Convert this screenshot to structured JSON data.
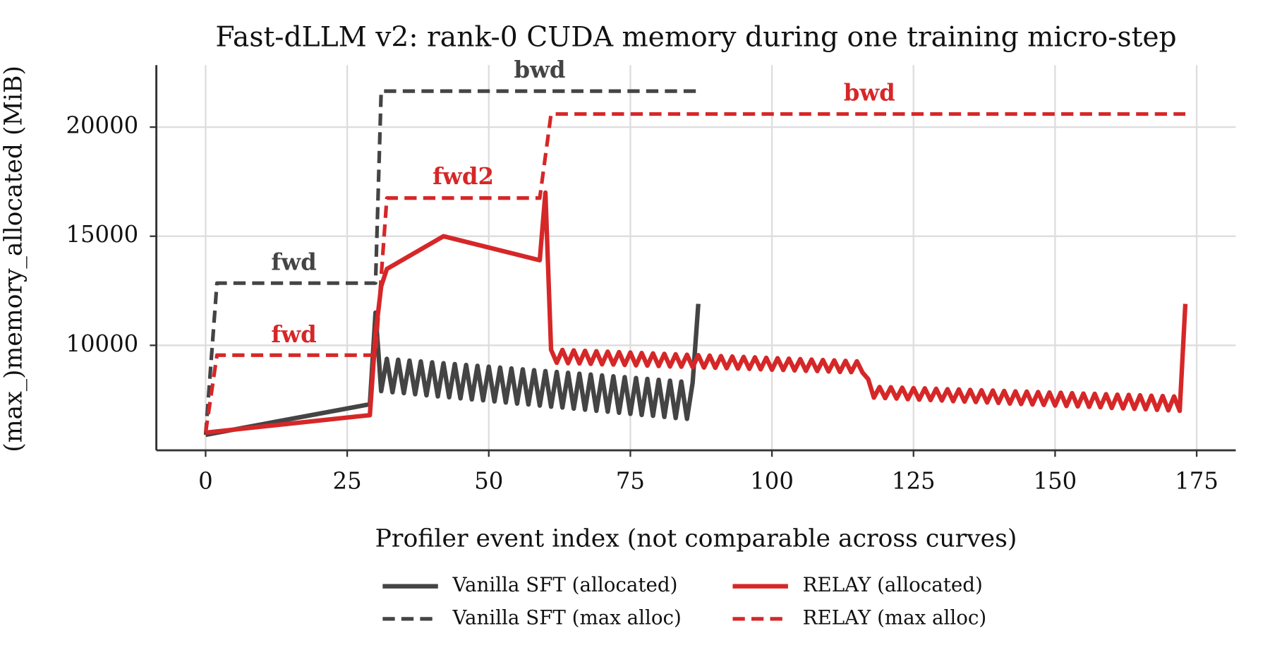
{
  "chart_data": {
    "type": "line",
    "title": "Fast-dLLM v2: rank-0 CUDA memory during one training micro-step",
    "xlabel": "Profiler event index (not comparable across curves)",
    "ylabel": "(max_)memory_allocated (MiB)",
    "xlim": [
      -8.7,
      181.9
    ],
    "ylim": [
      5190,
      22840
    ],
    "xticks": [
      0,
      25,
      50,
      75,
      100,
      125,
      150,
      175
    ],
    "yticks": [
      10000,
      15000,
      20000
    ],
    "grid": true,
    "legend": "lower center",
    "series": [
      {
        "name": "Vanilla SFT (allocated)",
        "color": "#444444",
        "linestyle": "solid",
        "x": [
          0,
          29,
          30,
          31,
          32,
          33,
          34,
          35,
          36,
          37,
          38,
          39,
          40,
          41,
          42,
          43,
          44,
          45,
          46,
          47,
          48,
          49,
          50,
          51,
          52,
          53,
          54,
          55,
          56,
          57,
          58,
          59,
          60,
          61,
          62,
          63,
          64,
          65,
          66,
          67,
          68,
          69,
          70,
          71,
          72,
          73,
          74,
          75,
          76,
          77,
          78,
          79,
          80,
          81,
          82,
          83,
          84,
          85,
          86,
          87
        ],
        "values": [
          5900,
          7300,
          11500,
          7900,
          9380,
          7850,
          9340,
          7810,
          9300,
          7760,
          9260,
          7710,
          9220,
          7660,
          9180,
          7620,
          9140,
          7570,
          9100,
          7520,
          9060,
          7480,
          9020,
          7430,
          8980,
          7380,
          8940,
          7330,
          8900,
          7290,
          8860,
          7240,
          8820,
          7190,
          8780,
          7150,
          8740,
          7100,
          8700,
          7050,
          8660,
          7000,
          8620,
          6960,
          8580,
          6910,
          8540,
          6860,
          8500,
          6810,
          8460,
          6770,
          8420,
          6720,
          8380,
          6670,
          8340,
          6630,
          8300,
          11900
        ]
      },
      {
        "name": "Vanilla SFT (max alloc)",
        "color": "#444444",
        "linestyle": "dashed",
        "x": [
          0,
          2,
          30,
          31,
          87
        ],
        "values": [
          5900,
          12850,
          12850,
          21650,
          21650
        ]
      },
      {
        "name": "RELAY (allocated)",
        "color": "#d62728",
        "linestyle": "solid",
        "x": [
          0,
          29,
          30,
          31,
          32,
          42,
          59,
          60,
          61,
          62,
          63,
          64,
          65,
          66,
          67,
          68,
          69,
          70,
          71,
          72,
          73,
          74,
          75,
          76,
          77,
          78,
          79,
          80,
          81,
          82,
          83,
          84,
          85,
          86,
          87,
          88,
          89,
          90,
          91,
          92,
          93,
          94,
          95,
          96,
          97,
          98,
          99,
          100,
          101,
          102,
          103,
          104,
          105,
          106,
          107,
          108,
          109,
          110,
          111,
          112,
          113,
          114,
          115,
          116,
          117,
          118,
          119,
          120,
          121,
          122,
          123,
          124,
          125,
          126,
          127,
          128,
          129,
          130,
          131,
          132,
          133,
          134,
          135,
          136,
          137,
          138,
          139,
          140,
          141,
          142,
          143,
          144,
          145,
          146,
          147,
          148,
          149,
          150,
          151,
          152,
          153,
          154,
          155,
          156,
          157,
          158,
          159,
          160,
          161,
          162,
          163,
          164,
          165,
          166,
          167,
          168,
          169,
          170,
          171,
          172,
          173
        ],
        "values": [
          6000,
          6800,
          10500,
          12700,
          13500,
          15000,
          13900,
          17000,
          9800,
          9200,
          9790,
          9180,
          9770,
          9170,
          9750,
          9150,
          9730,
          9130,
          9710,
          9120,
          9690,
          9100,
          9670,
          9080,
          9650,
          9070,
          9630,
          9050,
          9610,
          9030,
          9590,
          9020,
          9570,
          9000,
          9550,
          8980,
          9530,
          8970,
          9510,
          8950,
          9490,
          8930,
          9470,
          8920,
          9450,
          8900,
          9430,
          8880,
          9410,
          8870,
          9390,
          8850,
          9370,
          8830,
          9350,
          8820,
          9330,
          8800,
          9310,
          8780,
          9290,
          8770,
          9270,
          8750,
          8450,
          7600,
          8090,
          7580,
          8080,
          7560,
          8060,
          7530,
          8040,
          7510,
          8030,
          7490,
          8010,
          7470,
          7990,
          7440,
          7980,
          7420,
          7960,
          7400,
          7940,
          7380,
          7930,
          7360,
          7910,
          7330,
          7890,
          7310,
          7880,
          7290,
          7860,
          7270,
          7840,
          7240,
          7830,
          7220,
          7810,
          7200,
          7790,
          7180,
          7780,
          7160,
          7760,
          7130,
          7740,
          7110,
          7730,
          7090,
          7710,
          7070,
          7690,
          7040,
          7680,
          7020,
          7660,
          7000,
          11900
        ]
      },
      {
        "name": "RELAY (max alloc)",
        "color": "#d62728",
        "linestyle": "dashed",
        "x": [
          0,
          2,
          30,
          32,
          59,
          61,
          173
        ],
        "values": [
          6000,
          9550,
          9550,
          16750,
          16750,
          20600,
          20600
        ]
      }
    ],
    "annotations": [
      {
        "text": "bwd",
        "color": "#444444"
      },
      {
        "text": "bwd",
        "color": "#d62728"
      },
      {
        "text": "fwd2",
        "color": "#d62728"
      },
      {
        "text": "fwd",
        "color": "#444444"
      },
      {
        "text": "fwd",
        "color": "#d62728"
      }
    ]
  }
}
